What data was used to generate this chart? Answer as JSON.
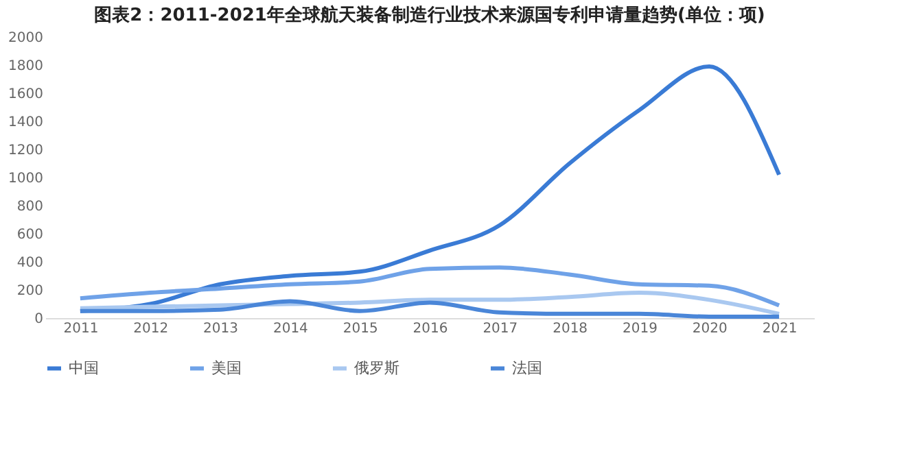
{
  "chart_data": {
    "type": "line",
    "title": "图表2：2011-2021年全球航天装备制造行业技术来源国专利申请量趋势(单位：项)",
    "categories": [
      "2011",
      "2012",
      "2013",
      "2014",
      "2015",
      "2016",
      "2017",
      "2018",
      "2019",
      "2020",
      "2021"
    ],
    "series": [
      {
        "name": "中国",
        "color": "#3a7bd5",
        "values": [
          50,
          100,
          240,
          300,
          330,
          480,
          660,
          1100,
          1480,
          1790,
          1020
        ]
      },
      {
        "name": "美国",
        "color": "#6fa2e8",
        "values": [
          140,
          180,
          210,
          240,
          260,
          350,
          360,
          310,
          240,
          230,
          90
        ]
      },
      {
        "name": "俄罗斯",
        "color": "#a9c8f0",
        "values": [
          70,
          80,
          90,
          100,
          110,
          130,
          130,
          150,
          180,
          130,
          30
        ]
      },
      {
        "name": "法国",
        "color": "#4a86d8",
        "values": [
          50,
          50,
          60,
          120,
          50,
          110,
          40,
          30,
          30,
          10,
          10
        ]
      }
    ],
    "ylim": [
      0,
      2000
    ],
    "yticks": [
      0,
      200,
      400,
      600,
      800,
      1000,
      1200,
      1400,
      1600,
      1800,
      2000
    ],
    "grid": false,
    "legend": "bottom",
    "marker": "none",
    "line_style": "solid"
  }
}
